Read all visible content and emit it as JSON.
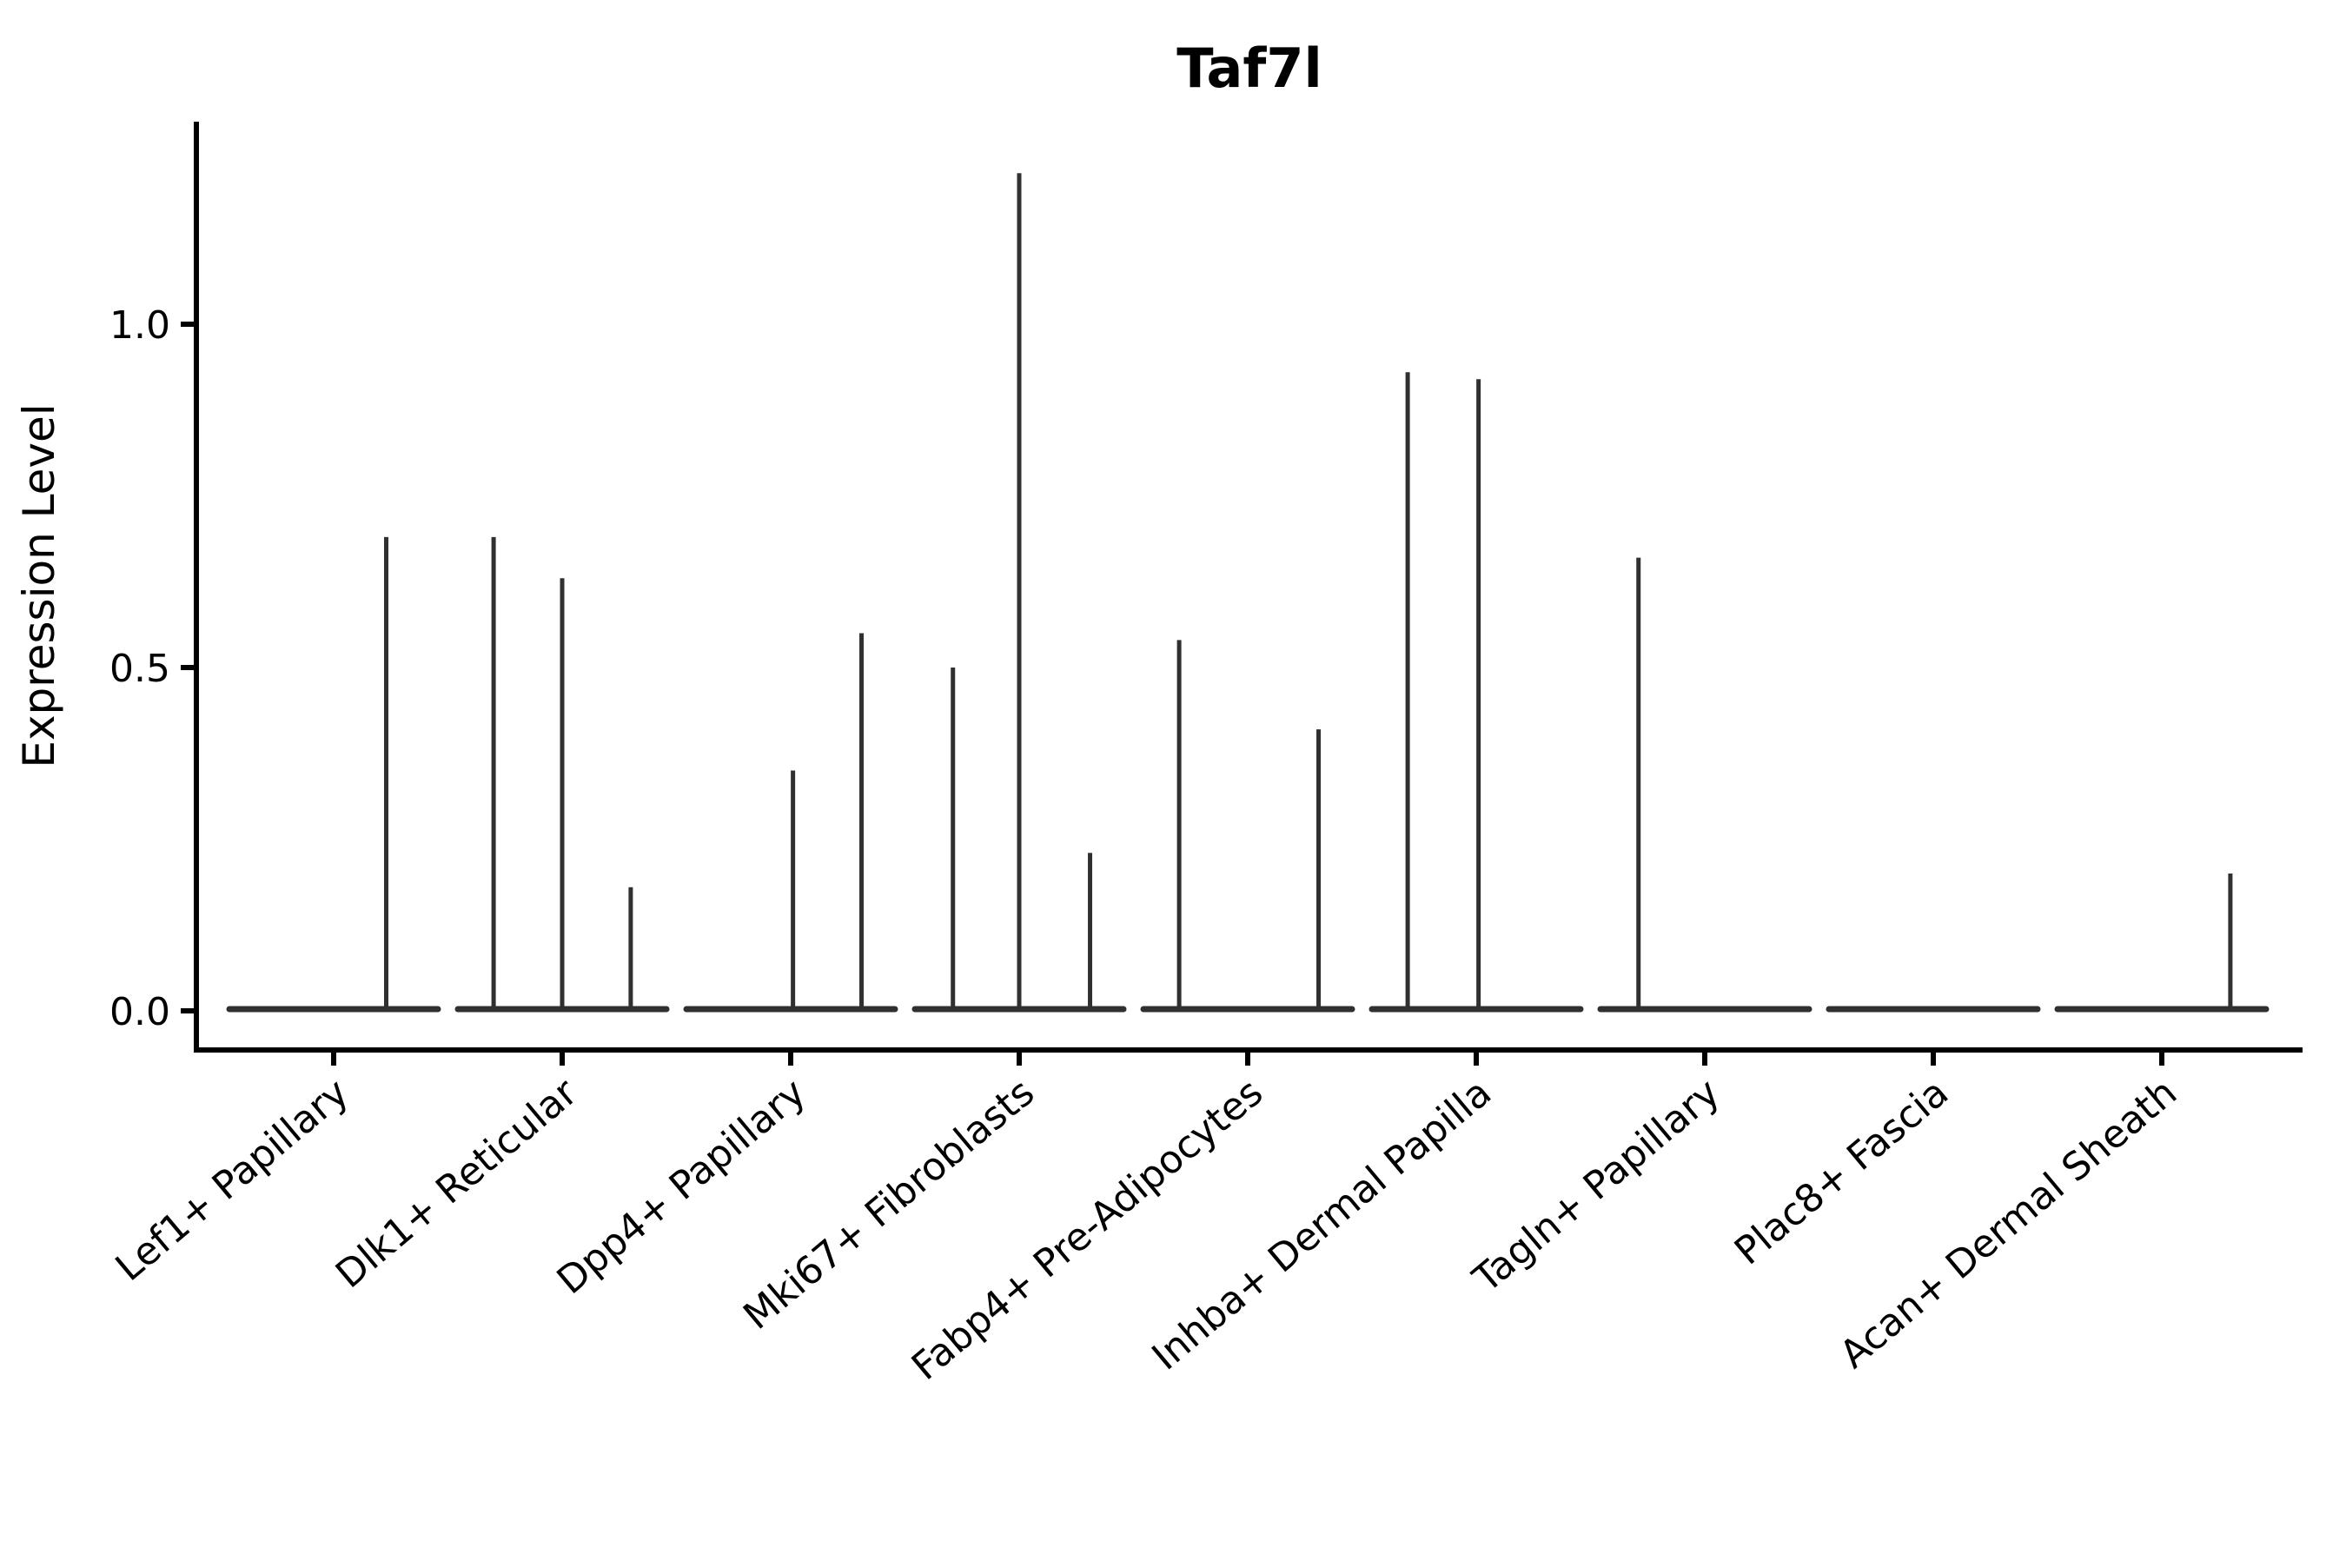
{
  "figure": {
    "background": "#ffffff"
  },
  "chart_data": {
    "type": "violin",
    "title": "Taf7l",
    "xlabel": "",
    "ylabel": "Expression Level",
    "grid": false,
    "legend": null,
    "ylim": [
      -0.06,
      1.3
    ],
    "y_ticks": [
      {
        "value": 0.0,
        "label": "0.0"
      },
      {
        "value": 0.5,
        "label": "0.5"
      },
      {
        "value": 1.0,
        "label": "1.0"
      }
    ],
    "x_tick_rotation_deg": 40,
    "categories": [
      "Lef1+ Papillary",
      "Dlk1+ Reticular",
      "Dpp4+ Papillary",
      "Mki67+ Fibroblasts",
      "Fabp4+ Pre-Adipocytes",
      "Inhba+ Dermal Papilla",
      "Tagln+ Papillary",
      "Plac8+ Fascia",
      "Acan+ Dermal Sheath"
    ],
    "violins": [
      {
        "category": "Lef1+ Papillary",
        "baseline_value": 0.0,
        "spikes": [
          {
            "offset": 0.23,
            "max": 0.69
          }
        ]
      },
      {
        "category": "Dlk1+ Reticular",
        "baseline_value": 0.0,
        "spikes": [
          {
            "offset": -0.3,
            "max": 0.69
          },
          {
            "offset": 0.0,
            "max": 0.63
          },
          {
            "offset": 0.3,
            "max": 0.18
          }
        ]
      },
      {
        "category": "Dpp4+ Papillary",
        "baseline_value": 0.0,
        "spikes": [
          {
            "offset": 0.01,
            "max": 0.35
          },
          {
            "offset": 0.31,
            "max": 0.55
          }
        ]
      },
      {
        "category": "Mki67+ Fibroblasts",
        "baseline_value": 0.0,
        "spikes": [
          {
            "offset": -0.29,
            "max": 0.5
          },
          {
            "offset": 0.0,
            "max": 1.22
          },
          {
            "offset": 0.31,
            "max": 0.23
          }
        ]
      },
      {
        "category": "Fabp4+ Pre-Adipocytes",
        "baseline_value": 0.0,
        "spikes": [
          {
            "offset": -0.3,
            "max": 0.54
          },
          {
            "offset": 0.31,
            "max": 0.41
          }
        ]
      },
      {
        "category": "Inhba+ Dermal Papilla",
        "baseline_value": 0.0,
        "spikes": [
          {
            "offset": -0.3,
            "max": 0.93
          },
          {
            "offset": 0.01,
            "max": 0.92
          }
        ]
      },
      {
        "category": "Tagln+ Papillary",
        "baseline_value": 0.0,
        "spikes": [
          {
            "offset": -0.29,
            "max": 0.66
          }
        ]
      },
      {
        "category": "Plac8+ Fascia",
        "baseline_value": 0.0,
        "spikes": []
      },
      {
        "category": "Acan+ Dermal Sheath",
        "baseline_value": 0.0,
        "spikes": [
          {
            "offset": 0.3,
            "max": 0.2
          }
        ]
      }
    ],
    "colors": {
      "violin_line": "#303030",
      "axis": "#000000",
      "text": "#000000"
    }
  }
}
